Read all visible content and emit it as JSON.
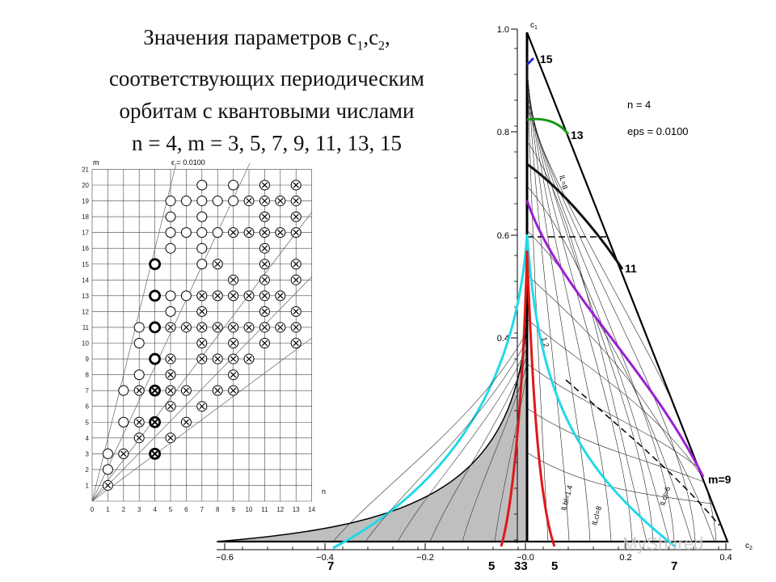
{
  "title": {
    "line1_prefix": "Значения параметров c",
    "line1_sub1": "1",
    "line1_comma": ",c",
    "line1_sub2": "2",
    "line1_end": ",",
    "line2": "соответствующих периодическим",
    "line3": "орбитам с квантовыми числами",
    "line4": "n = 4, m = 3, 5, 7, 9, 11, 13, 15"
  },
  "grid_plot": {
    "ylabel": "m",
    "xlabel": "n",
    "annotation": "ϵ = 0.0100",
    "x_ticks": [
      "0",
      "1",
      "2",
      "3",
      "4",
      "5",
      "6",
      "7",
      "8",
      "9",
      "10",
      "11",
      "12",
      "13",
      "14"
    ],
    "y_ticks": [
      "1",
      "2",
      "3",
      "4",
      "5",
      "6",
      "7",
      "8",
      "9",
      "10",
      "11",
      "12",
      "13",
      "14",
      "15",
      "16",
      "17",
      "18",
      "19",
      "20",
      "21"
    ],
    "marks": [
      {
        "n": 1,
        "m": 1,
        "kind": "x"
      },
      {
        "n": 1,
        "m": 2,
        "kind": "o"
      },
      {
        "n": 1,
        "m": 3,
        "kind": "o"
      },
      {
        "n": 2,
        "m": 3,
        "kind": "x"
      },
      {
        "n": 2,
        "m": 5,
        "kind": "o"
      },
      {
        "n": 2,
        "m": 7,
        "kind": "o"
      },
      {
        "n": 3,
        "m": 4,
        "kind": "x"
      },
      {
        "n": 3,
        "m": 5,
        "kind": "x"
      },
      {
        "n": 3,
        "m": 7,
        "kind": "x"
      },
      {
        "n": 3,
        "m": 8,
        "kind": "o"
      },
      {
        "n": 3,
        "m": 10,
        "kind": "o"
      },
      {
        "n": 3,
        "m": 11,
        "kind": "o"
      },
      {
        "n": 4,
        "m": 3,
        "kind": "xb"
      },
      {
        "n": 4,
        "m": 5,
        "kind": "xb"
      },
      {
        "n": 4,
        "m": 7,
        "kind": "xb"
      },
      {
        "n": 4,
        "m": 9,
        "kind": "ob"
      },
      {
        "n": 4,
        "m": 11,
        "kind": "ob"
      },
      {
        "n": 4,
        "m": 13,
        "kind": "ob"
      },
      {
        "n": 4,
        "m": 15,
        "kind": "ob"
      },
      {
        "n": 5,
        "m": 4,
        "kind": "x"
      },
      {
        "n": 5,
        "m": 6,
        "kind": "x"
      },
      {
        "n": 5,
        "m": 7,
        "kind": "x"
      },
      {
        "n": 5,
        "m": 8,
        "kind": "x"
      },
      {
        "n": 5,
        "m": 9,
        "kind": "x"
      },
      {
        "n": 5,
        "m": 11,
        "kind": "x"
      },
      {
        "n": 5,
        "m": 12,
        "kind": "o"
      },
      {
        "n": 5,
        "m": 13,
        "kind": "o"
      },
      {
        "n": 5,
        "m": 16,
        "kind": "o"
      },
      {
        "n": 5,
        "m": 17,
        "kind": "o"
      },
      {
        "n": 5,
        "m": 18,
        "kind": "o"
      },
      {
        "n": 5,
        "m": 19,
        "kind": "o"
      },
      {
        "n": 6,
        "m": 5,
        "kind": "x"
      },
      {
        "n": 6,
        "m": 7,
        "kind": "x"
      },
      {
        "n": 6,
        "m": 11,
        "kind": "x"
      },
      {
        "n": 6,
        "m": 13,
        "kind": "o"
      },
      {
        "n": 6,
        "m": 17,
        "kind": "o"
      },
      {
        "n": 6,
        "m": 19,
        "kind": "o"
      },
      {
        "n": 7,
        "m": 6,
        "kind": "x"
      },
      {
        "n": 7,
        "m": 9,
        "kind": "x"
      },
      {
        "n": 7,
        "m": 10,
        "kind": "x"
      },
      {
        "n": 7,
        "m": 11,
        "kind": "x"
      },
      {
        "n": 7,
        "m": 12,
        "kind": "x"
      },
      {
        "n": 7,
        "m": 13,
        "kind": "x"
      },
      {
        "n": 7,
        "m": 15,
        "kind": "o"
      },
      {
        "n": 7,
        "m": 16,
        "kind": "o"
      },
      {
        "n": 7,
        "m": 17,
        "kind": "o"
      },
      {
        "n": 7,
        "m": 18,
        "kind": "o"
      },
      {
        "n": 7,
        "m": 19,
        "kind": "o"
      },
      {
        "n": 7,
        "m": 20,
        "kind": "o"
      },
      {
        "n": 8,
        "m": 7,
        "kind": "x"
      },
      {
        "n": 8,
        "m": 9,
        "kind": "x"
      },
      {
        "n": 8,
        "m": 11,
        "kind": "x"
      },
      {
        "n": 8,
        "m": 13,
        "kind": "x"
      },
      {
        "n": 8,
        "m": 15,
        "kind": "x"
      },
      {
        "n": 8,
        "m": 17,
        "kind": "o"
      },
      {
        "n": 8,
        "m": 19,
        "kind": "o"
      },
      {
        "n": 9,
        "m": 7,
        "kind": "x"
      },
      {
        "n": 9,
        "m": 8,
        "kind": "x"
      },
      {
        "n": 9,
        "m": 9,
        "kind": "x"
      },
      {
        "n": 9,
        "m": 10,
        "kind": "x"
      },
      {
        "n": 9,
        "m": 11,
        "kind": "x"
      },
      {
        "n": 9,
        "m": 13,
        "kind": "x"
      },
      {
        "n": 9,
        "m": 14,
        "kind": "x"
      },
      {
        "n": 9,
        "m": 17,
        "kind": "x"
      },
      {
        "n": 9,
        "m": 19,
        "kind": "o"
      },
      {
        "n": 9,
        "m": 20,
        "kind": "o"
      },
      {
        "n": 10,
        "m": 9,
        "kind": "x"
      },
      {
        "n": 10,
        "m": 11,
        "kind": "x"
      },
      {
        "n": 10,
        "m": 13,
        "kind": "x"
      },
      {
        "n": 10,
        "m": 17,
        "kind": "x"
      },
      {
        "n": 10,
        "m": 19,
        "kind": "x"
      },
      {
        "n": 11,
        "m": 10,
        "kind": "x"
      },
      {
        "n": 11,
        "m": 11,
        "kind": "x"
      },
      {
        "n": 11,
        "m": 12,
        "kind": "x"
      },
      {
        "n": 11,
        "m": 13,
        "kind": "x"
      },
      {
        "n": 11,
        "m": 14,
        "kind": "x"
      },
      {
        "n": 11,
        "m": 15,
        "kind": "x"
      },
      {
        "n": 11,
        "m": 16,
        "kind": "x"
      },
      {
        "n": 11,
        "m": 17,
        "kind": "x"
      },
      {
        "n": 11,
        "m": 18,
        "kind": "x"
      },
      {
        "n": 11,
        "m": 19,
        "kind": "x"
      },
      {
        "n": 11,
        "m": 20,
        "kind": "x"
      },
      {
        "n": 12,
        "m": 11,
        "kind": "x"
      },
      {
        "n": 12,
        "m": 13,
        "kind": "x"
      },
      {
        "n": 12,
        "m": 17,
        "kind": "x"
      },
      {
        "n": 12,
        "m": 19,
        "kind": "x"
      },
      {
        "n": 13,
        "m": 10,
        "kind": "x"
      },
      {
        "n": 13,
        "m": 11,
        "kind": "x"
      },
      {
        "n": 13,
        "m": 12,
        "kind": "x"
      },
      {
        "n": 13,
        "m": 14,
        "kind": "x"
      },
      {
        "n": 13,
        "m": 15,
        "kind": "x"
      },
      {
        "n": 13,
        "m": 17,
        "kind": "x"
      },
      {
        "n": 13,
        "m": 18,
        "kind": "x"
      },
      {
        "n": 13,
        "m": 19,
        "kind": "x"
      },
      {
        "n": 13,
        "m": 20,
        "kind": "x"
      }
    ]
  },
  "param_plot": {
    "axis_y_label": "c",
    "axis_y_sub": "1",
    "axis_x_label": "c",
    "axis_x_sub": "2",
    "y_ticks": [
      "1.0",
      "0.8",
      "0.6",
      "0.4"
    ],
    "x_ticks": [
      "−0.6",
      "−0.4",
      "−0.2",
      "−0.0",
      "0.2",
      "0.4"
    ],
    "info_n": "n = 4",
    "info_eps": "eps =   0.0100",
    "labels": {
      "m15": "15",
      "m13": "13",
      "m11": "11",
      "m9": "m=9",
      "bottom_7_left": "7",
      "bottom_5_left": "5",
      "bottom_33": "33",
      "bottom_5_right": "5",
      "bottom_7_right": "7"
    },
    "inner_labels": [
      "lLbl=1.4",
      "lLcl=8",
      "lLcl=6",
      "lL=8",
      "1.2"
    ],
    "colors": {
      "m15": "#1f2fd6",
      "m13": "#169a16",
      "m11": "#111111",
      "m9": "#9a1fd6",
      "m7": "#22d8e8",
      "m5": "#e01818",
      "shade": "#bfbfbf"
    }
  },
  "watermark": "MyShared"
}
